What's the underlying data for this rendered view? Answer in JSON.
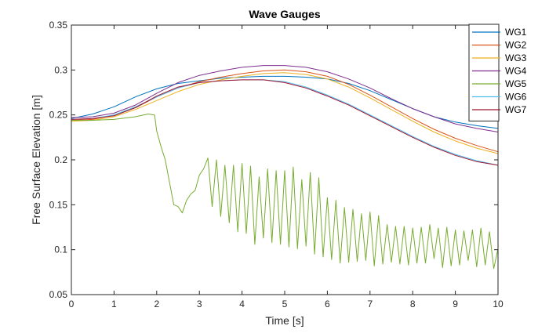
{
  "chart_data": {
    "type": "line",
    "title": "Wave Gauges",
    "xlabel": "Time [s]",
    "ylabel": "Free Surface Elevation [m]",
    "xlim": [
      0,
      10
    ],
    "ylim": [
      0.05,
      0.35
    ],
    "xticks": [
      0,
      1,
      2,
      3,
      4,
      5,
      6,
      7,
      8,
      9,
      10
    ],
    "xtick_labels": [
      "0",
      "1",
      "2",
      "3",
      "4",
      "5",
      "6",
      "7",
      "8",
      "9",
      "10"
    ],
    "yticks": [
      0.05,
      0.1,
      0.15,
      0.2,
      0.25,
      0.3,
      0.35
    ],
    "ytick_labels": [
      "0.05",
      "0.1",
      "0.15",
      "0.2",
      "0.25",
      "0.3",
      "0.35"
    ],
    "grid": false,
    "legend_position": "top-right",
    "series": [
      {
        "name": "WG1",
        "color": "#0072BD",
        "x": [
          0,
          0.5,
          1,
          1.5,
          2,
          2.5,
          3,
          3.5,
          4,
          4.5,
          5,
          5.5,
          6,
          6.5,
          7,
          7.5,
          8,
          8.5,
          9,
          9.5,
          10
        ],
        "y": [
          0.246,
          0.251,
          0.259,
          0.27,
          0.279,
          0.285,
          0.288,
          0.291,
          0.292,
          0.293,
          0.293,
          0.292,
          0.29,
          0.285,
          0.277,
          0.267,
          0.257,
          0.248,
          0.242,
          0.238,
          0.235
        ]
      },
      {
        "name": "WG2",
        "color": "#D95319",
        "x": [
          0,
          0.5,
          1,
          1.5,
          2,
          2.5,
          3,
          3.5,
          4,
          4.5,
          5,
          5.5,
          6,
          6.5,
          7,
          7.5,
          8,
          8.5,
          9,
          9.5,
          10
        ],
        "y": [
          0.244,
          0.245,
          0.25,
          0.258,
          0.27,
          0.28,
          0.287,
          0.292,
          0.296,
          0.299,
          0.3,
          0.298,
          0.293,
          0.284,
          0.272,
          0.259,
          0.246,
          0.234,
          0.224,
          0.216,
          0.209
        ]
      },
      {
        "name": "WG3",
        "color": "#EDB120",
        "x": [
          0,
          0.5,
          1,
          1.5,
          2,
          2.5,
          3,
          3.5,
          4,
          4.5,
          5,
          5.5,
          6,
          6.5,
          7,
          7.5,
          8,
          8.5,
          9,
          9.5,
          10
        ],
        "y": [
          0.243,
          0.244,
          0.248,
          0.256,
          0.266,
          0.276,
          0.284,
          0.289,
          0.293,
          0.296,
          0.297,
          0.295,
          0.29,
          0.281,
          0.269,
          0.256,
          0.243,
          0.231,
          0.221,
          0.213,
          0.207
        ]
      },
      {
        "name": "WG4",
        "color": "#7E2F8E",
        "x": [
          0,
          0.5,
          1,
          1.5,
          2,
          2.5,
          3,
          3.5,
          4,
          4.5,
          5,
          5.5,
          6,
          6.5,
          7,
          7.5,
          8,
          8.5,
          9,
          9.5,
          10
        ],
        "y": [
          0.247,
          0.248,
          0.252,
          0.261,
          0.274,
          0.286,
          0.294,
          0.299,
          0.303,
          0.305,
          0.305,
          0.303,
          0.298,
          0.29,
          0.28,
          0.268,
          0.257,
          0.248,
          0.24,
          0.235,
          0.231
        ]
      },
      {
        "name": "WG5",
        "color": "#77AC30",
        "x": [
          0,
          0.5,
          1,
          1.5,
          1.8,
          1.95,
          2.0,
          2.1,
          2.2,
          2.3,
          2.4,
          2.5,
          2.6,
          2.7,
          2.8,
          2.9,
          3.0,
          3.1,
          3.2,
          3.3,
          3.4,
          3.5,
          3.6,
          3.7,
          3.8,
          3.9,
          4.0,
          4.1,
          4.2,
          4.3,
          4.4,
          4.5,
          4.6,
          4.7,
          4.8,
          4.9,
          5.0,
          5.1,
          5.2,
          5.3,
          5.4,
          5.5,
          5.6,
          5.7,
          5.8,
          5.9,
          6.0,
          6.1,
          6.2,
          6.3,
          6.4,
          6.5,
          6.6,
          6.7,
          6.8,
          6.9,
          7.0,
          7.1,
          7.2,
          7.3,
          7.4,
          7.5,
          7.6,
          7.7,
          7.8,
          7.9,
          8.0,
          8.1,
          8.2,
          8.3,
          8.4,
          8.5,
          8.6,
          8.7,
          8.8,
          8.9,
          9.0,
          9.1,
          9.2,
          9.3,
          9.4,
          9.5,
          9.6,
          9.7,
          9.8,
          9.9,
          10.0
        ],
        "y": [
          0.244,
          0.244,
          0.245,
          0.248,
          0.251,
          0.25,
          0.232,
          0.215,
          0.2,
          0.175,
          0.15,
          0.148,
          0.141,
          0.155,
          0.162,
          0.166,
          0.183,
          0.19,
          0.202,
          0.148,
          0.2,
          0.137,
          0.194,
          0.13,
          0.194,
          0.12,
          0.196,
          0.118,
          0.193,
          0.106,
          0.181,
          0.113,
          0.19,
          0.108,
          0.188,
          0.106,
          0.188,
          0.103,
          0.192,
          0.101,
          0.178,
          0.104,
          0.186,
          0.095,
          0.18,
          0.092,
          0.158,
          0.089,
          0.155,
          0.085,
          0.147,
          0.086,
          0.145,
          0.087,
          0.14,
          0.088,
          0.142,
          0.082,
          0.138,
          0.084,
          0.128,
          0.086,
          0.126,
          0.084,
          0.126,
          0.083,
          0.124,
          0.085,
          0.125,
          0.085,
          0.128,
          0.09,
          0.124,
          0.08,
          0.125,
          0.082,
          0.122,
          0.083,
          0.121,
          0.088,
          0.122,
          0.081,
          0.124,
          0.083,
          0.12,
          0.079,
          0.101
        ]
      },
      {
        "name": "WG6",
        "color": "#4DBEEE",
        "x": [
          0,
          0.5,
          1,
          1.5,
          2,
          2.5,
          3,
          3.5,
          4,
          4.5,
          5,
          5.5,
          6,
          6.5,
          7,
          7.5,
          8,
          8.5,
          9,
          9.5,
          10
        ],
        "y": [
          0.245,
          0.246,
          0.25,
          0.259,
          0.27,
          0.28,
          0.286,
          0.288,
          0.289,
          0.289,
          0.287,
          0.281,
          0.272,
          0.262,
          0.25,
          0.238,
          0.226,
          0.215,
          0.206,
          0.199,
          0.194
        ]
      },
      {
        "name": "WG7",
        "color": "#A2142F",
        "x": [
          0,
          0.5,
          1,
          1.5,
          2,
          2.5,
          3,
          3.5,
          4,
          4.5,
          5,
          5.5,
          6,
          6.5,
          7,
          7.5,
          8,
          8.5,
          9,
          9.5,
          10
        ],
        "y": [
          0.245,
          0.246,
          0.249,
          0.258,
          0.271,
          0.281,
          0.286,
          0.288,
          0.289,
          0.289,
          0.286,
          0.28,
          0.271,
          0.261,
          0.249,
          0.237,
          0.225,
          0.214,
          0.205,
          0.198,
          0.194
        ]
      }
    ]
  }
}
